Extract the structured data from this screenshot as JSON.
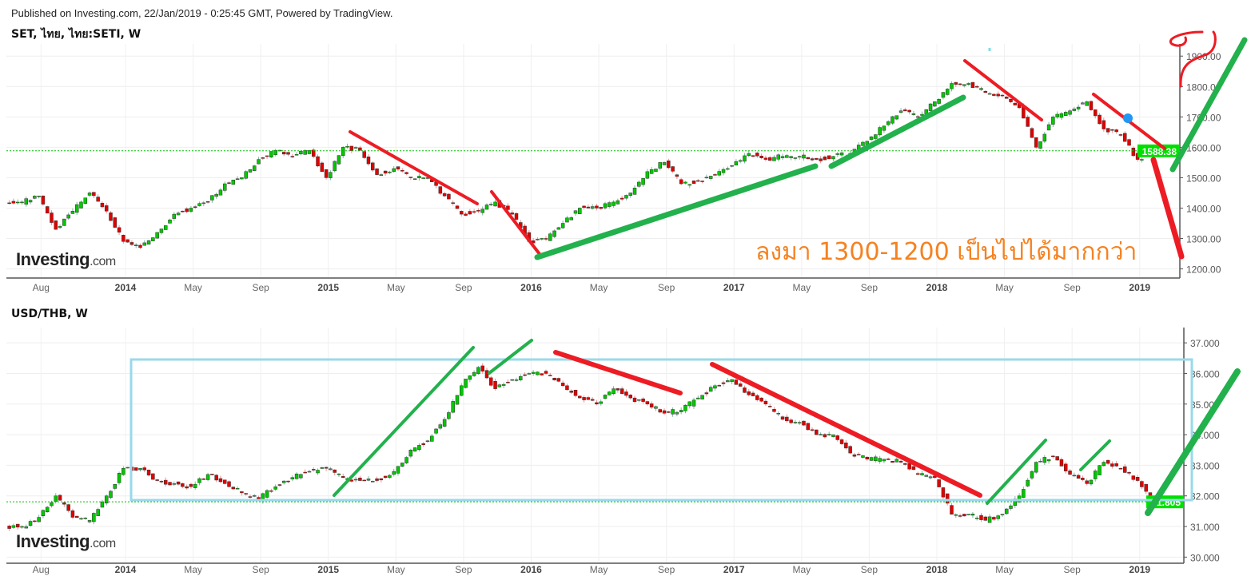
{
  "header": {
    "published": "Published on Investing.com, 22/Jan/2019 - 0:25:45 GMT, Powered by TradingView."
  },
  "logo": {
    "main": "Investing",
    "suffix": ".com"
  },
  "annotation_text": "ลงมา 1300-1200 เป็นไปได้มากกว่า",
  "colors": {
    "up": "#00c800",
    "down": "#e00000",
    "price_tag": "#00e000",
    "trend_up": "#22b14c",
    "trend_down": "#ed1c24",
    "range_box": "#99d9ea",
    "annotation": "#f58220"
  },
  "chart_data": [
    {
      "type": "candlestick",
      "title": "SET, ไทย, ไทย:SETI, W",
      "last_price": "1588.38",
      "ylim": [
        1170,
        1940
      ],
      "y_ticks": [
        "1200.00",
        "1300.00",
        "1400.00",
        "1500.00",
        "1600.00",
        "1700.00",
        "1800.00",
        "1900.00"
      ],
      "x_ticks": [
        [
          "Aug",
          "2013-08"
        ],
        [
          "2014",
          "2014-01"
        ],
        [
          "May",
          "2014-05"
        ],
        [
          "Sep",
          "2014-09"
        ],
        [
          "2015",
          "2015-01"
        ],
        [
          "May",
          "2015-05"
        ],
        [
          "Sep",
          "2015-09"
        ],
        [
          "2016",
          "2016-01"
        ],
        [
          "May",
          "2016-05"
        ],
        [
          "Sep",
          "2016-09"
        ],
        [
          "2017",
          "2017-01"
        ],
        [
          "May",
          "2017-05"
        ],
        [
          "Sep",
          "2017-09"
        ],
        [
          "2018",
          "2018-01"
        ],
        [
          "May",
          "2018-05"
        ],
        [
          "Sep",
          "2018-09"
        ],
        [
          "2019",
          "2019-01"
        ]
      ],
      "monthly_close": [
        [
          "2013-06",
          1420
        ],
        [
          "2013-07",
          1440
        ],
        [
          "2013-08",
          1330
        ],
        [
          "2013-09",
          1390
        ],
        [
          "2013-10",
          1450
        ],
        [
          "2013-11",
          1390
        ],
        [
          "2013-12",
          1290
        ],
        [
          "2014-01",
          1270
        ],
        [
          "2014-02",
          1320
        ],
        [
          "2014-03",
          1380
        ],
        [
          "2014-04",
          1400
        ],
        [
          "2014-05",
          1420
        ],
        [
          "2014-06",
          1480
        ],
        [
          "2014-07",
          1500
        ],
        [
          "2014-08",
          1560
        ],
        [
          "2014-09",
          1590
        ],
        [
          "2014-10",
          1570
        ],
        [
          "2014-11",
          1590
        ],
        [
          "2014-12",
          1500
        ],
        [
          "2015-01",
          1600
        ],
        [
          "2015-02",
          1590
        ],
        [
          "2015-03",
          1510
        ],
        [
          "2015-04",
          1530
        ],
        [
          "2015-05",
          1500
        ],
        [
          "2015-06",
          1500
        ],
        [
          "2015-07",
          1440
        ],
        [
          "2015-08",
          1380
        ],
        [
          "2015-09",
          1390
        ],
        [
          "2015-10",
          1420
        ],
        [
          "2015-11",
          1380
        ],
        [
          "2015-12",
          1290
        ],
        [
          "2016-01",
          1300
        ],
        [
          "2016-02",
          1350
        ],
        [
          "2016-03",
          1400
        ],
        [
          "2016-04",
          1400
        ],
        [
          "2016-05",
          1420
        ],
        [
          "2016-06",
          1450
        ],
        [
          "2016-07",
          1520
        ],
        [
          "2016-08",
          1550
        ],
        [
          "2016-09",
          1480
        ],
        [
          "2016-10",
          1490
        ],
        [
          "2016-11",
          1510
        ],
        [
          "2016-12",
          1540
        ],
        [
          "2017-01",
          1580
        ],
        [
          "2017-02",
          1560
        ],
        [
          "2017-03",
          1570
        ],
        [
          "2017-04",
          1570
        ],
        [
          "2017-05",
          1560
        ],
        [
          "2017-06",
          1570
        ],
        [
          "2017-07",
          1580
        ],
        [
          "2017-08",
          1620
        ],
        [
          "2017-09",
          1670
        ],
        [
          "2017-10",
          1720
        ],
        [
          "2017-11",
          1700
        ],
        [
          "2017-12",
          1750
        ],
        [
          "2018-01",
          1810
        ],
        [
          "2018-02",
          1810
        ],
        [
          "2018-03",
          1780
        ],
        [
          "2018-04",
          1770
        ],
        [
          "2018-05",
          1730
        ],
        [
          "2018-06",
          1600
        ],
        [
          "2018-07",
          1700
        ],
        [
          "2018-08",
          1720
        ],
        [
          "2018-09",
          1750
        ],
        [
          "2018-10",
          1660
        ],
        [
          "2018-11",
          1640
        ],
        [
          "2018-12",
          1560
        ],
        [
          "2019-01",
          1588.38
        ]
      ]
    },
    {
      "type": "candlestick",
      "title": "USD/THB, W",
      "last_price": "31.805",
      "ylim": [
        29.8,
        37.5
      ],
      "y_ticks": [
        "30.000",
        "31.000",
        "32.000",
        "33.000",
        "34.000",
        "35.000",
        "36.000",
        "37.000"
      ],
      "x_ticks": [
        [
          "Aug",
          "2013-08"
        ],
        [
          "2014",
          "2014-01"
        ],
        [
          "May",
          "2014-05"
        ],
        [
          "Sep",
          "2014-09"
        ],
        [
          "2015",
          "2015-01"
        ],
        [
          "May",
          "2015-05"
        ],
        [
          "Sep",
          "2015-09"
        ],
        [
          "2016",
          "2016-01"
        ],
        [
          "May",
          "2016-05"
        ],
        [
          "Sep",
          "2016-09"
        ],
        [
          "2017",
          "2017-01"
        ],
        [
          "May",
          "2017-05"
        ],
        [
          "Sep",
          "2017-09"
        ],
        [
          "2018",
          "2018-01"
        ],
        [
          "May",
          "2018-05"
        ],
        [
          "Sep",
          "2018-09"
        ],
        [
          "2019",
          "2019-01"
        ]
      ],
      "monthly_close": [
        [
          "2013-06",
          31.0
        ],
        [
          "2013-07",
          31.3
        ],
        [
          "2013-08",
          32.0
        ],
        [
          "2013-09",
          31.3
        ],
        [
          "2013-10",
          31.2
        ],
        [
          "2013-11",
          32.0
        ],
        [
          "2013-12",
          32.9
        ],
        [
          "2014-01",
          32.9
        ],
        [
          "2014-02",
          32.5
        ],
        [
          "2014-03",
          32.4
        ],
        [
          "2014-04",
          32.3
        ],
        [
          "2014-05",
          32.7
        ],
        [
          "2014-06",
          32.4
        ],
        [
          "2014-07",
          32.1
        ],
        [
          "2014-08",
          31.9
        ],
        [
          "2014-09",
          32.3
        ],
        [
          "2014-10",
          32.6
        ],
        [
          "2014-11",
          32.8
        ],
        [
          "2014-12",
          32.9
        ],
        [
          "2015-01",
          32.6
        ],
        [
          "2015-02",
          32.5
        ],
        [
          "2015-03",
          32.5
        ],
        [
          "2015-04",
          32.8
        ],
        [
          "2015-05",
          33.5
        ],
        [
          "2015-06",
          33.8
        ],
        [
          "2015-07",
          34.5
        ],
        [
          "2015-08",
          35.6
        ],
        [
          "2015-09",
          36.2
        ],
        [
          "2015-10",
          35.5
        ],
        [
          "2015-11",
          35.8
        ],
        [
          "2015-12",
          36.0
        ],
        [
          "2016-01",
          36.0
        ],
        [
          "2016-02",
          35.6
        ],
        [
          "2016-03",
          35.2
        ],
        [
          "2016-04",
          35.0
        ],
        [
          "2016-05",
          35.5
        ],
        [
          "2016-06",
          35.2
        ],
        [
          "2016-07",
          35.0
        ],
        [
          "2016-08",
          34.7
        ],
        [
          "2016-09",
          34.8
        ],
        [
          "2016-10",
          35.2
        ],
        [
          "2016-11",
          35.6
        ],
        [
          "2016-12",
          35.8
        ],
        [
          "2017-01",
          35.3
        ],
        [
          "2017-02",
          35.0
        ],
        [
          "2017-03",
          34.5
        ],
        [
          "2017-04",
          34.4
        ],
        [
          "2017-05",
          34.0
        ],
        [
          "2017-06",
          34.0
        ],
        [
          "2017-07",
          33.4
        ],
        [
          "2017-08",
          33.2
        ],
        [
          "2017-09",
          33.2
        ],
        [
          "2017-10",
          33.1
        ],
        [
          "2017-11",
          32.7
        ],
        [
          "2017-12",
          32.6
        ],
        [
          "2018-01",
          31.4
        ],
        [
          "2018-02",
          31.4
        ],
        [
          "2018-03",
          31.2
        ],
        [
          "2018-04",
          31.4
        ],
        [
          "2018-05",
          32.0
        ],
        [
          "2018-06",
          33.1
        ],
        [
          "2018-07",
          33.3
        ],
        [
          "2018-08",
          32.7
        ],
        [
          "2018-09",
          32.4
        ],
        [
          "2018-10",
          33.1
        ],
        [
          "2018-11",
          32.9
        ],
        [
          "2018-12",
          32.5
        ],
        [
          "2019-01",
          31.805
        ]
      ]
    }
  ]
}
